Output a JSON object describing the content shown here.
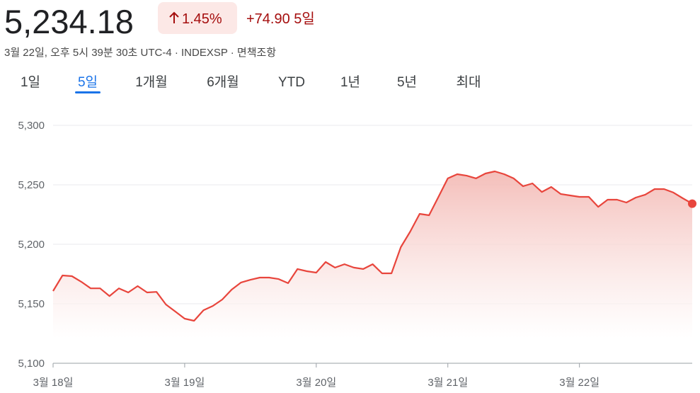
{
  "header": {
    "price": "5,234.18",
    "change_percent": "1.45%",
    "change_value": "+74.90 5일",
    "info": "3월 22일, 오후 5시 39분 30초 UTC-4 · INDEXSP · 면책조항"
  },
  "tabs": {
    "items": [
      "1일",
      "5일",
      "1개월",
      "6개월",
      "YTD",
      "1년",
      "5년",
      "최대"
    ],
    "selected": 1
  },
  "chart_data": {
    "type": "area",
    "color": "#e8453c",
    "grid": true,
    "values": [
      5160.7,
      5173.8,
      5173.2,
      5168.5,
      5163,
      5163,
      5156.5,
      5163,
      5159.5,
      5164.9,
      5159.5,
      5160,
      5149.4,
      5143.5,
      5137.5,
      5135.7,
      5144.6,
      5148.2,
      5153.6,
      5161.9,
      5167.9,
      5170.2,
      5172,
      5172,
      5170.8,
      5167.3,
      5179.2,
      5177.4,
      5176.2,
      5185.1,
      5180.4,
      5183.3,
      5180.4,
      5179.2,
      5183.3,
      5175.6,
      5175.6,
      5197.6,
      5210.7,
      5225.6,
      5224.4,
      5239.9,
      5255.4,
      5258.9,
      5257.7,
      5255.4,
      5259.5,
      5261.3,
      5258.9,
      5255.4,
      5248.8,
      5251.2,
      5244,
      5248.2,
      5242.3,
      5241.1,
      5239.9,
      5239.9,
      5231.5,
      5237.5,
      5237.5,
      5235.1,
      5239.3,
      5241.7,
      5246.4,
      5246.4,
      5243.5,
      5238.7,
      5234.18
    ],
    "xlim": [
      0,
      68
    ],
    "xticks": [
      {
        "value": 0,
        "label": "3월 18일"
      },
      {
        "value": 14,
        "label": "3월 19일"
      },
      {
        "value": 28,
        "label": "3월 20일"
      },
      {
        "value": 42,
        "label": "3월 21일"
      },
      {
        "value": 56,
        "label": "3월 22일"
      }
    ],
    "ylim": [
      5100,
      5300
    ],
    "yticks": [
      {
        "value": 5100,
        "label": "5,100"
      },
      {
        "value": 5150,
        "label": "5,150"
      },
      {
        "value": 5200,
        "label": "5,200"
      },
      {
        "value": 5250,
        "label": "5,250"
      },
      {
        "value": 5300,
        "label": "5,300"
      }
    ]
  }
}
